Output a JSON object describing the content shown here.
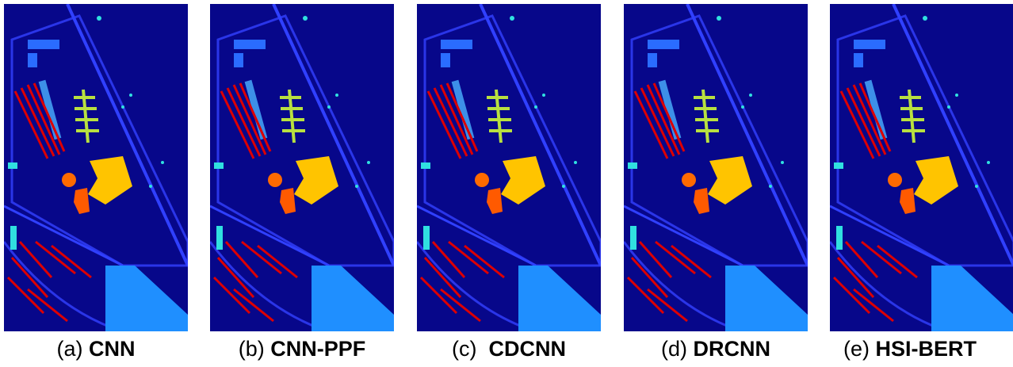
{
  "panels": [
    {
      "label": "(a)",
      "name": "CNN"
    },
    {
      "label": "(b)",
      "name": "CNN-PPF"
    },
    {
      "label": "(c)",
      "name": "CDCNN"
    },
    {
      "label": "(d)",
      "name": "DRCNN"
    },
    {
      "label": "(e)",
      "name": "HSI-BERT"
    }
  ]
}
